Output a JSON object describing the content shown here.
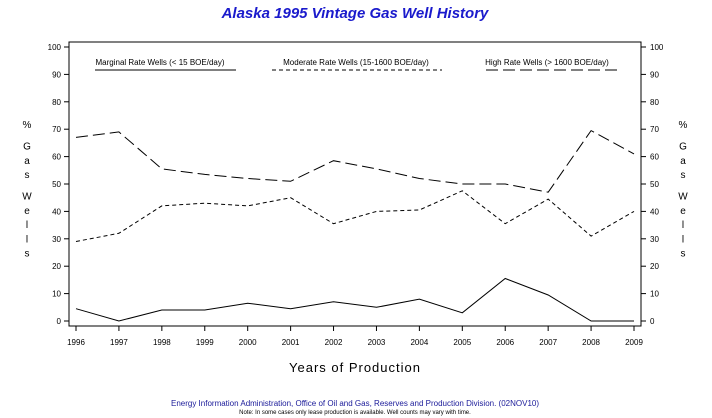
{
  "chart_data": {
    "type": "line",
    "title": "Alaska 1995 Vintage Gas Well History",
    "xlabel": "Years of Production",
    "ylabel_left": [
      "%",
      "G",
      "a",
      "s",
      "W",
      "e",
      "l",
      "l",
      "s"
    ],
    "ylabel_right": [
      "%",
      "G",
      "a",
      "s",
      "W",
      "e",
      "l",
      "l",
      "s"
    ],
    "ylim": [
      0,
      100
    ],
    "yticks": [
      "0",
      "10",
      "20",
      "30",
      "40",
      "50",
      "60",
      "70",
      "80",
      "90",
      "100"
    ],
    "categories": [
      "1996",
      "1997",
      "1998",
      "1999",
      "2000",
      "2001",
      "2002",
      "2003",
      "2004",
      "2005",
      "2006",
      "2007",
      "2008",
      "2009"
    ],
    "grid": false,
    "legend_position": "top",
    "series": [
      {
        "name": "Marginal Rate Wells (< 15 BOE/day)",
        "style": "solid",
        "values": [
          4.5,
          0,
          4,
          4,
          6.5,
          4.5,
          7,
          5,
          8,
          3,
          15.5,
          9.5,
          0,
          0
        ]
      },
      {
        "name": "Moderate Rate Wells (15-1600 BOE/day)",
        "style": "short-dash",
        "values": [
          29,
          32,
          42,
          43,
          42,
          45,
          35.5,
          40,
          40.5,
          47.5,
          35.5,
          44.5,
          31,
          40
        ]
      },
      {
        "name": "High Rate Wells (> 1600 BOE/day)",
        "style": "long-dash",
        "values": [
          67,
          69,
          55.5,
          53.5,
          52,
          51,
          58.5,
          55.5,
          52,
          50,
          50,
          47,
          69.5,
          61
        ]
      }
    ]
  },
  "footer": {
    "source": "Energy Information Administration, Office of Oil and Gas, Reserves and Production Division. (02NOV10)",
    "note": "Note: In some cases only lease production is available. Well counts may vary with time."
  }
}
